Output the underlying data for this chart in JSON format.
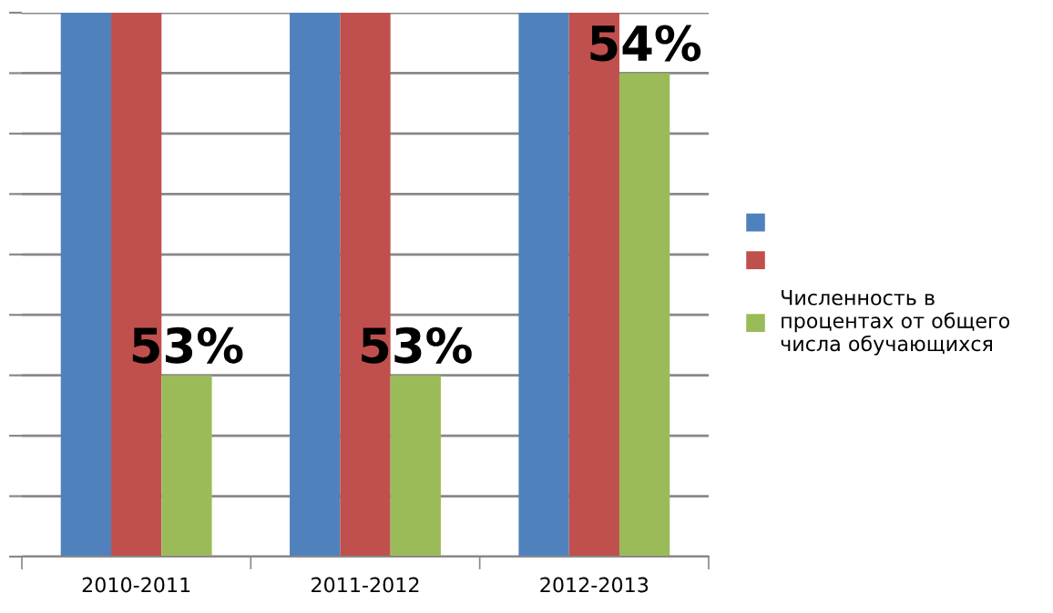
{
  "chart_data": {
    "type": "bar",
    "categories": [
      "2010-2011",
      "2011-2012",
      "2012-2013"
    ],
    "series": [
      {
        "color": "#4f81bd",
        "values": [
          54.2,
          54.2,
          54.2
        ]
      },
      {
        "color": "#c0504d",
        "values": [
          54.2,
          54.2,
          54.2
        ]
      },
      {
        "name": "Численность в\nпроцентах от общего\nчисла обучающихся",
        "color": "#9bbb59",
        "values": [
          53,
          53,
          54
        ],
        "value_labels": [
          "53%",
          "53%",
          "54%"
        ]
      }
    ],
    "ylim": [
      52.4,
      54.2
    ],
    "yticks": [
      {
        "value": 52.4,
        "label": null
      },
      {
        "value": 52.6,
        "label": null
      },
      {
        "value": 52.8,
        "label": null
      },
      {
        "value": 53.0,
        "label": null
      },
      {
        "value": 53.2,
        "label": null
      },
      {
        "value": 53.4,
        "label": null
      },
      {
        "value": 53.6,
        "label": null
      },
      {
        "value": 53.8,
        "label": null
      },
      {
        "value": 54.0,
        "label": null
      },
      {
        "value": 54.2,
        "label": null
      }
    ],
    "grid": "y",
    "legend": "right"
  }
}
